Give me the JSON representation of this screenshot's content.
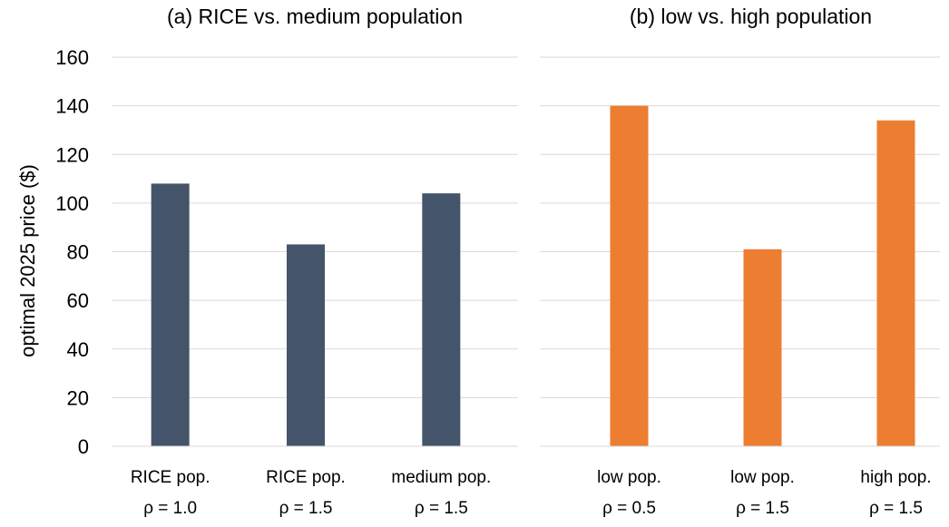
{
  "chart_data": {
    "type": "bar",
    "ylabel": "optimal 2025 price ($)",
    "ylim": [
      0,
      160
    ],
    "yticks": [
      0,
      20,
      40,
      60,
      80,
      100,
      120,
      140,
      160
    ],
    "grid": true,
    "legend": "none",
    "panels": [
      {
        "title": "(a) RICE vs. medium population",
        "color": "#44546a",
        "categories": [
          [
            "RICE pop.",
            "ρ = 1.0"
          ],
          [
            "RICE pop.",
            "ρ = 1.5"
          ],
          [
            "medium pop.",
            "ρ = 1.5"
          ]
        ],
        "values": [
          108,
          83,
          104
        ]
      },
      {
        "title": "(b) low vs. high population",
        "color": "#ed7d31",
        "categories": [
          [
            "low pop.",
            "ρ = 0.5"
          ],
          [
            "low pop.",
            "ρ = 1.5"
          ],
          [
            "high pop.",
            "ρ = 1.5"
          ]
        ],
        "values": [
          140,
          81,
          134
        ]
      }
    ]
  }
}
